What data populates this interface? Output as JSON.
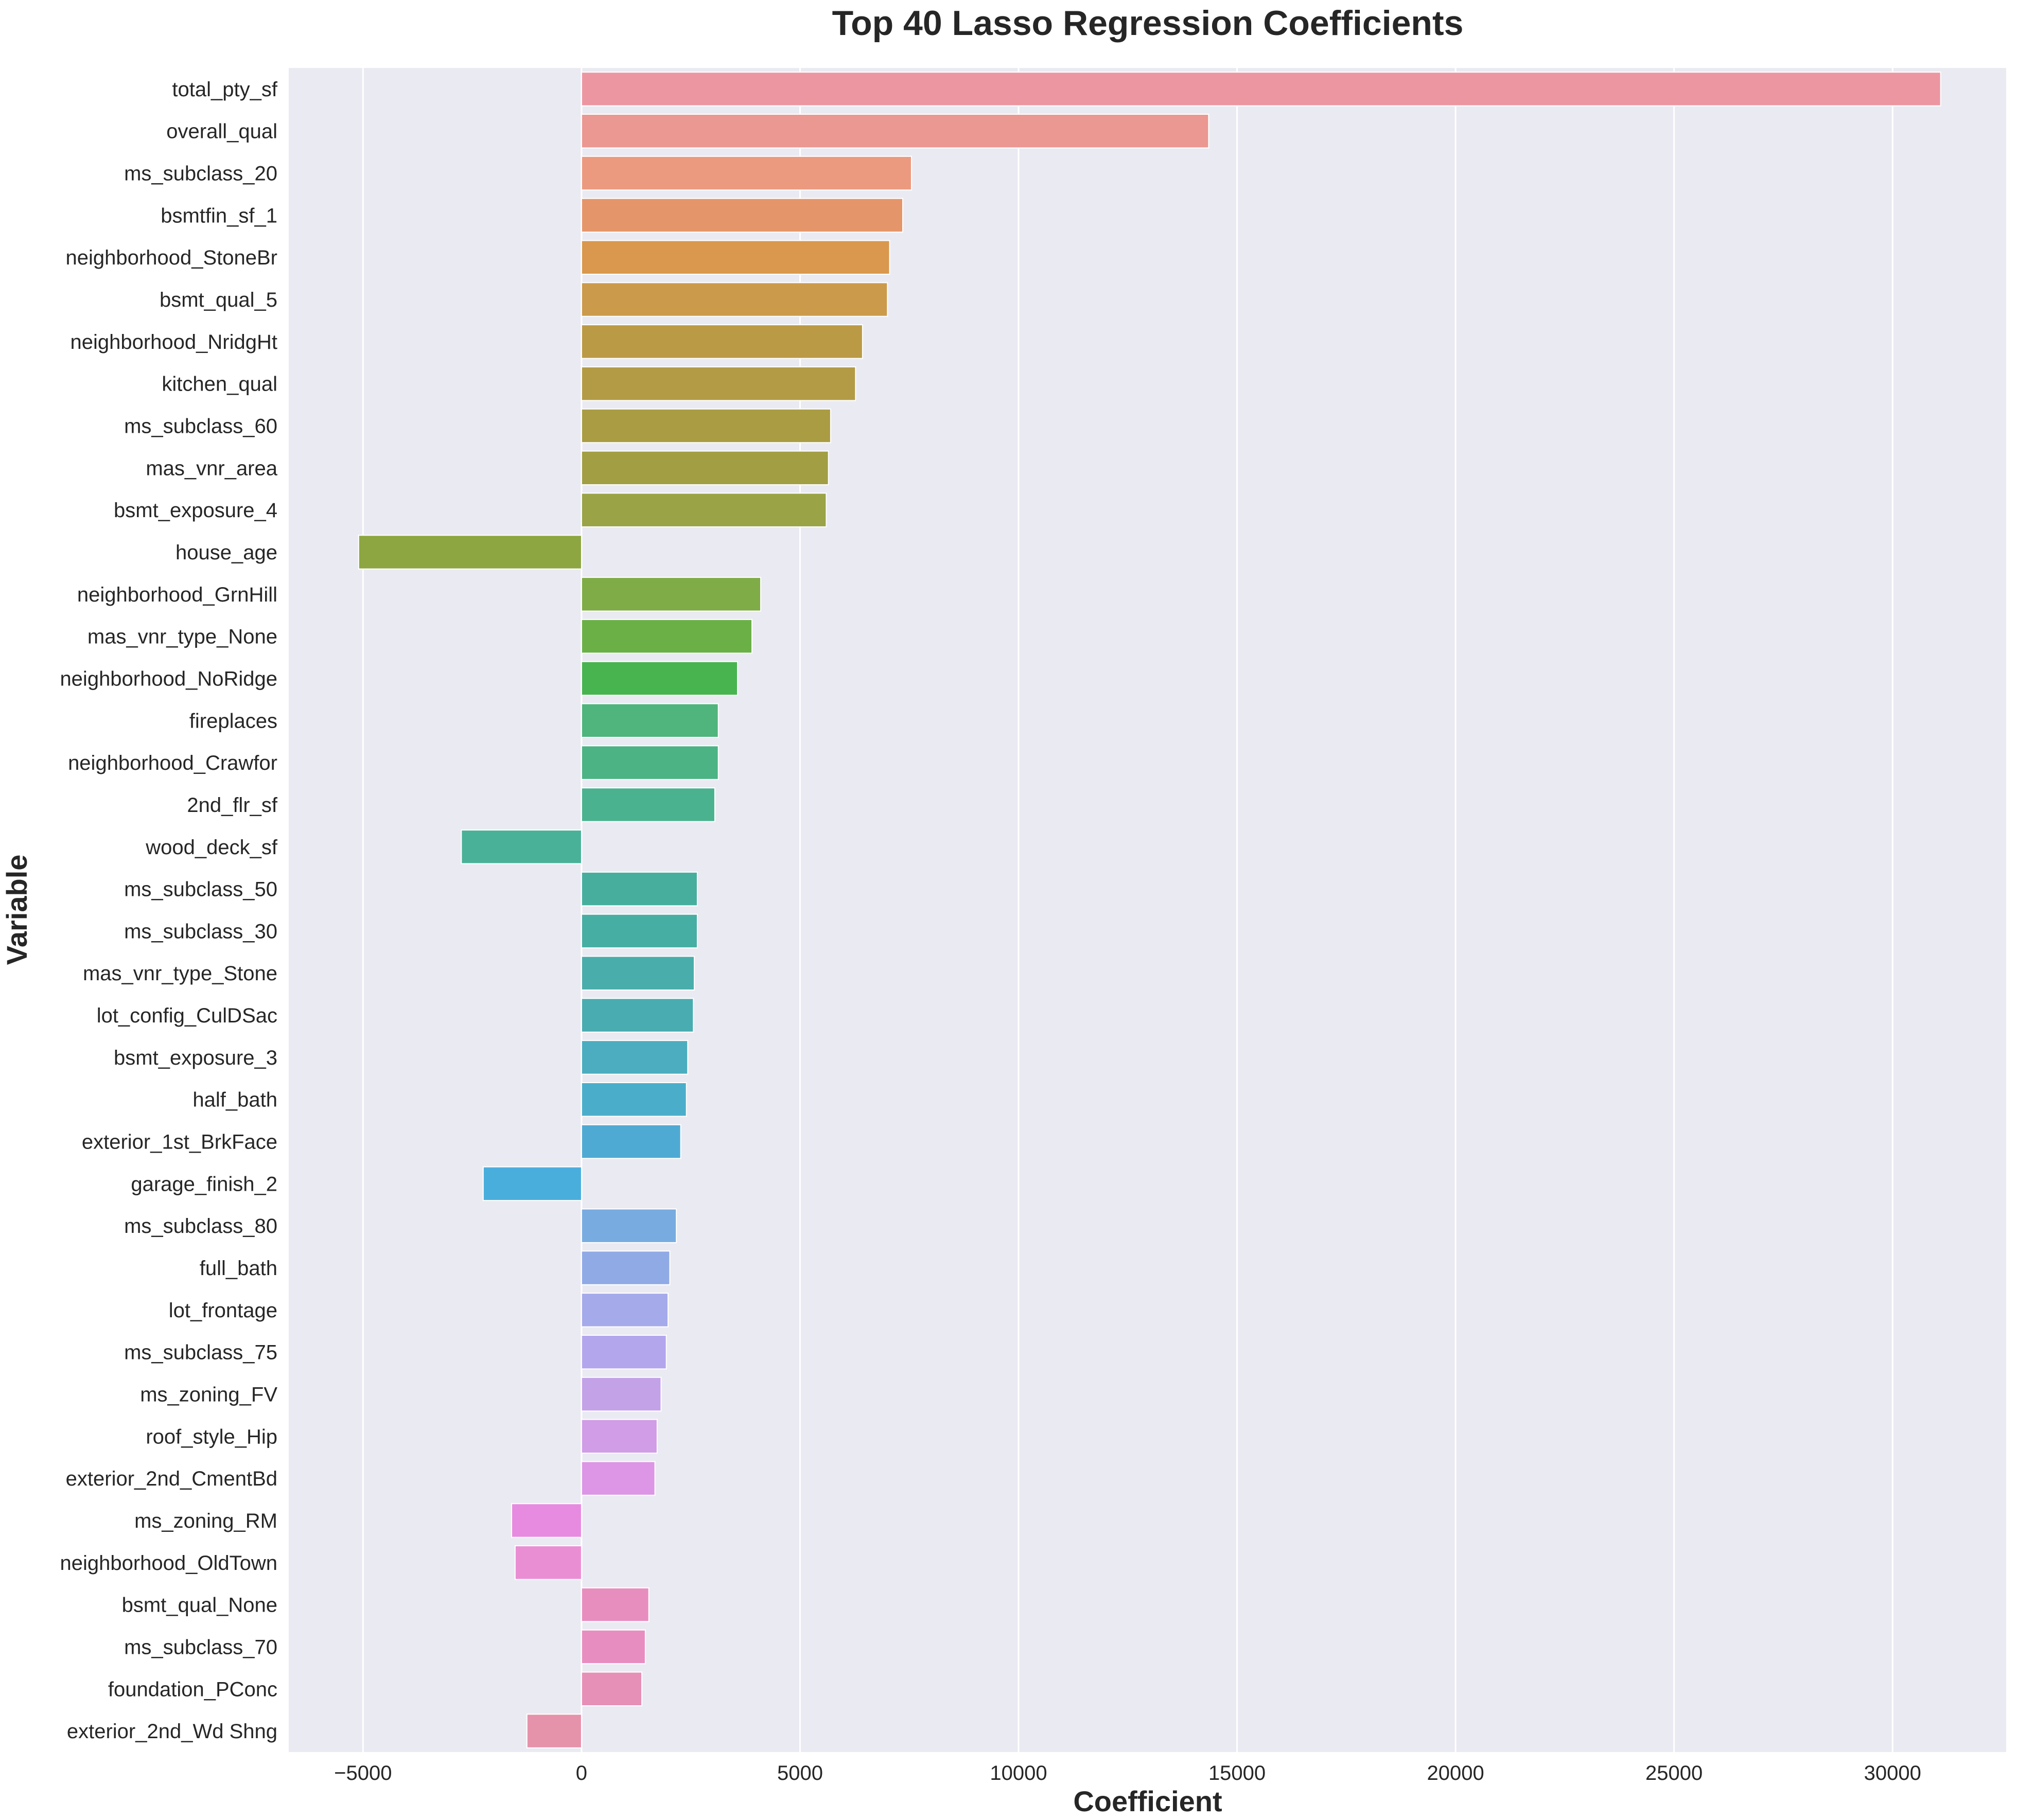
{
  "chart_data": {
    "type": "bar",
    "orientation": "horizontal",
    "title": "Top 40 Lasso Regression Coefficients",
    "xlabel": "Coefficient",
    "ylabel": "Variable",
    "xlim": [
      -6700,
      32600
    ],
    "xticks": [
      -5000,
      0,
      5000,
      10000,
      15000,
      20000,
      25000,
      30000
    ],
    "xtick_labels": [
      "−5000",
      "0",
      "5000",
      "10000",
      "15000",
      "20000",
      "25000",
      "30000"
    ],
    "grid": true,
    "categories": [
      "total_pty_sf",
      "overall_qual",
      "ms_subclass_20",
      "bsmtfin_sf_1",
      "neighborhood_StoneBr",
      "bsmt_qual_5",
      "neighborhood_NridgHt",
      "kitchen_qual",
      "ms_subclass_60",
      "mas_vnr_area",
      "bsmt_exposure_4",
      "house_age",
      "neighborhood_GrnHill",
      "mas_vnr_type_None",
      "neighborhood_NoRidge",
      "fireplaces",
      "neighborhood_Crawfor",
      "2nd_flr_sf",
      "wood_deck_sf",
      "ms_subclass_50",
      "ms_subclass_30",
      "mas_vnr_type_Stone",
      "lot_config_CulDSac",
      "bsmt_exposure_3",
      "half_bath",
      "exterior_1st_BrkFace",
      "garage_finish_2",
      "ms_subclass_80",
      "full_bath",
      "lot_frontage",
      "ms_subclass_75",
      "ms_zoning_FV",
      "roof_style_Hip",
      "exterior_2nd_CmentBd",
      "ms_zoning_RM",
      "neighborhood_OldTown",
      "bsmt_qual_None",
      "ms_subclass_70",
      "foundation_PConc",
      "exterior_2nd_Wd Shng"
    ],
    "values": [
      31100,
      14350,
      7550,
      7350,
      7050,
      7000,
      6430,
      6270,
      5700,
      5650,
      5600,
      -5100,
      4100,
      3900,
      3570,
      3130,
      3130,
      3050,
      -2750,
      2650,
      2650,
      2580,
      2560,
      2430,
      2400,
      2270,
      -2250,
      2170,
      2020,
      1980,
      1940,
      1820,
      1730,
      1680,
      -1600,
      -1520,
      1540,
      1460,
      1380,
      -1250
    ],
    "colors": [
      "#ec96a1",
      "#eb9792",
      "#eb9a7f",
      "#e5956a",
      "#d9984e",
      "#cc9a4b",
      "#bb9a46",
      "#b39b46",
      "#aa9c43",
      "#a29e43",
      "#9aa346",
      "#8da641",
      "#7fac46",
      "#6bb047",
      "#48b44f",
      "#4fb57c",
      "#4bb384",
      "#4ab28f",
      "#4ab199",
      "#47ae9e",
      "#47aea3",
      "#49adab",
      "#49acb1",
      "#4badbf",
      "#4aaeca",
      "#4faad3",
      "#4aaedd",
      "#78ace0",
      "#90aae6",
      "#a4aaea",
      "#b4a6ec",
      "#c3a2e8",
      "#d09de6",
      "#dc96e5",
      "#e68be0",
      "#ea8ed4",
      "#e88ebf",
      "#e88dc0",
      "#e690b7",
      "#e592ab"
    ]
  }
}
